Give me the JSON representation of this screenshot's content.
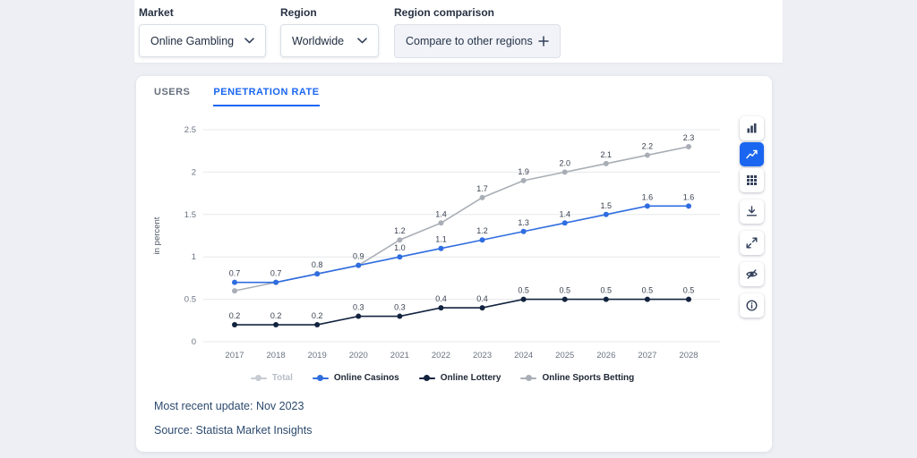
{
  "filters": {
    "market": {
      "label": "Market",
      "value": "Online Gambling"
    },
    "region": {
      "label": "Region",
      "value": "Worldwide"
    },
    "comparison": {
      "label": "Region comparison",
      "button_label": "Compare to other regions"
    }
  },
  "tabs": [
    {
      "label": "USERS",
      "active": false
    },
    {
      "label": "PENETRATION RATE",
      "active": true
    }
  ],
  "toolbar": {
    "icons": [
      "bar-chart",
      "line-chart",
      "data-table",
      "download",
      "fullscreen",
      "hide-eye",
      "info"
    ],
    "active_icon": "line-chart",
    "accent_color": "#1a66f0"
  },
  "chart_data": {
    "type": "line",
    "title": "",
    "ylabel": "in percent",
    "ylim": [
      0,
      2.5
    ],
    "yticks": [
      0,
      0.5,
      1,
      1.5,
      2,
      2.5
    ],
    "grid": true,
    "legend_position": "bottom",
    "x": [
      "2017",
      "2018",
      "2019",
      "2020",
      "2021",
      "2022",
      "2023",
      "2024",
      "2025",
      "2026",
      "2027",
      "2028"
    ],
    "series": [
      {
        "name": "Total",
        "color": "#c7cbd2",
        "hidden": true,
        "values": [],
        "labels": []
      },
      {
        "name": "Online Casinos",
        "color": "#2f6de0",
        "hidden": false,
        "values": [
          0.7,
          0.7,
          0.8,
          0.9,
          1.0,
          1.1,
          1.2,
          1.3,
          1.4,
          1.5,
          1.6,
          1.6
        ],
        "labels": [
          "0.7",
          "0.7",
          "0.8",
          "0.9",
          "1.0",
          "1.1",
          "1.2",
          "1.3",
          "1.4",
          "1.5",
          "1.6",
          "1.6"
        ]
      },
      {
        "name": "Online Lottery",
        "color": "#13233f",
        "hidden": false,
        "values": [
          0.2,
          0.2,
          0.2,
          0.3,
          0.3,
          0.4,
          0.4,
          0.5,
          0.5,
          0.5,
          0.5,
          0.5
        ],
        "labels": [
          "0.2",
          "0.2",
          "0.2",
          "0.3",
          "0.3",
          "0.4",
          "0.4",
          "0.5",
          "0.5",
          "0.5",
          "0.5",
          "0.5"
        ]
      },
      {
        "name": "Online Sports Betting",
        "color": "#a9aeb6",
        "hidden": false,
        "values": [
          0.6,
          0.7,
          0.8,
          0.9,
          1.2,
          1.4,
          1.7,
          1.9,
          2.0,
          2.1,
          2.2,
          2.3
        ],
        "labels": [
          null,
          null,
          null,
          null,
          "1.2",
          "1.4",
          "1.7",
          "1.9",
          "2.0",
          "2.1",
          "2.2",
          "2.3"
        ]
      }
    ]
  },
  "footer": {
    "updated": "Most recent update: Nov 2023",
    "source": "Source: Statista Market Insights"
  }
}
